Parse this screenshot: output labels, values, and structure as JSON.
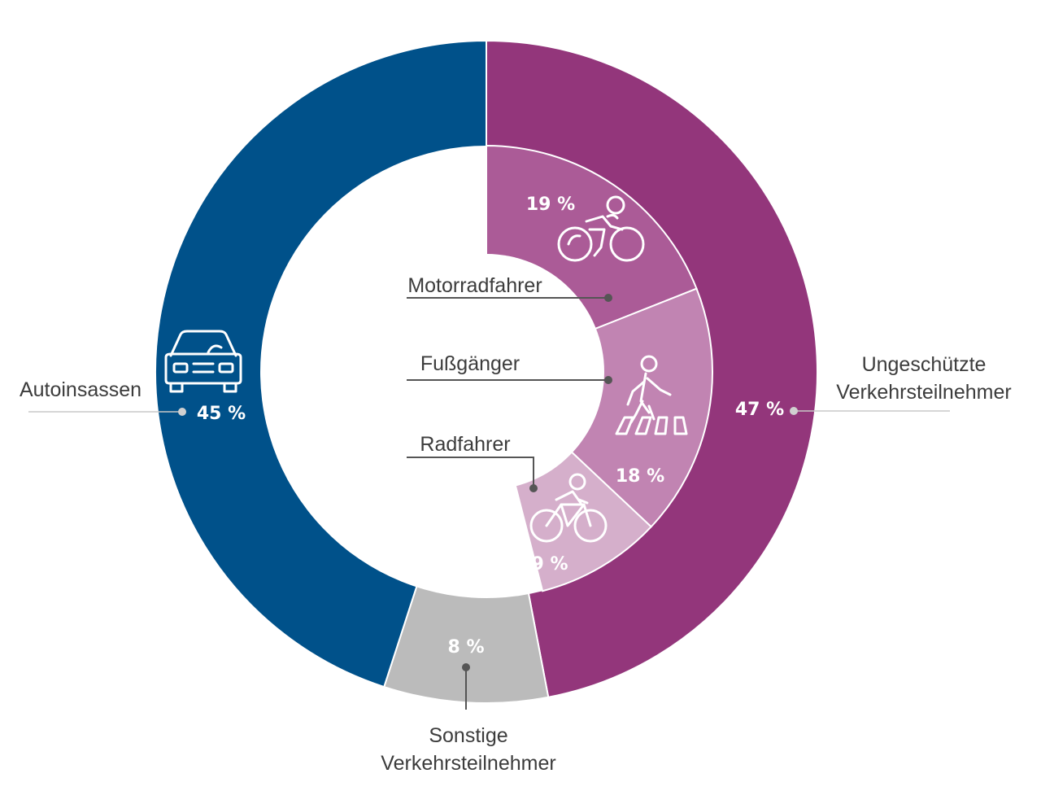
{
  "chart_data": {
    "type": "pie",
    "title": "",
    "outer_ring": [
      {
        "label": "Autoinsassen",
        "value": 45,
        "value_label": "45 %",
        "color": "#00518a",
        "icon": "car-icon"
      },
      {
        "label": "Sonstige Verkehrsteilnehmer",
        "label_lines": [
          "Sonstige",
          "Verkehrsteilnehmer"
        ],
        "value": 8,
        "value_label": "8 %",
        "color": "#bbbbbb"
      },
      {
        "label": "Ungeschützte Verkehrsteilnehmer",
        "label_lines": [
          "Ungeschützte",
          "Verkehrsteilnehmer"
        ],
        "value": 47,
        "value_label": "47 %",
        "color": "#93367b"
      }
    ],
    "inner_ring": [
      {
        "label": "Motorradfahrer",
        "value": 19,
        "value_label": "19 %",
        "color": "#ab5b97",
        "icon": "motorcyclist-icon"
      },
      {
        "label": "Fußgänger",
        "value": 18,
        "value_label": "18 %",
        "color": "#c184b2",
        "icon": "pedestrian-icon"
      },
      {
        "label": "Radfahrer",
        "value": 9,
        "value_label": "9 %",
        "color": "#d5afcb",
        "icon": "cyclist-icon"
      }
    ]
  }
}
